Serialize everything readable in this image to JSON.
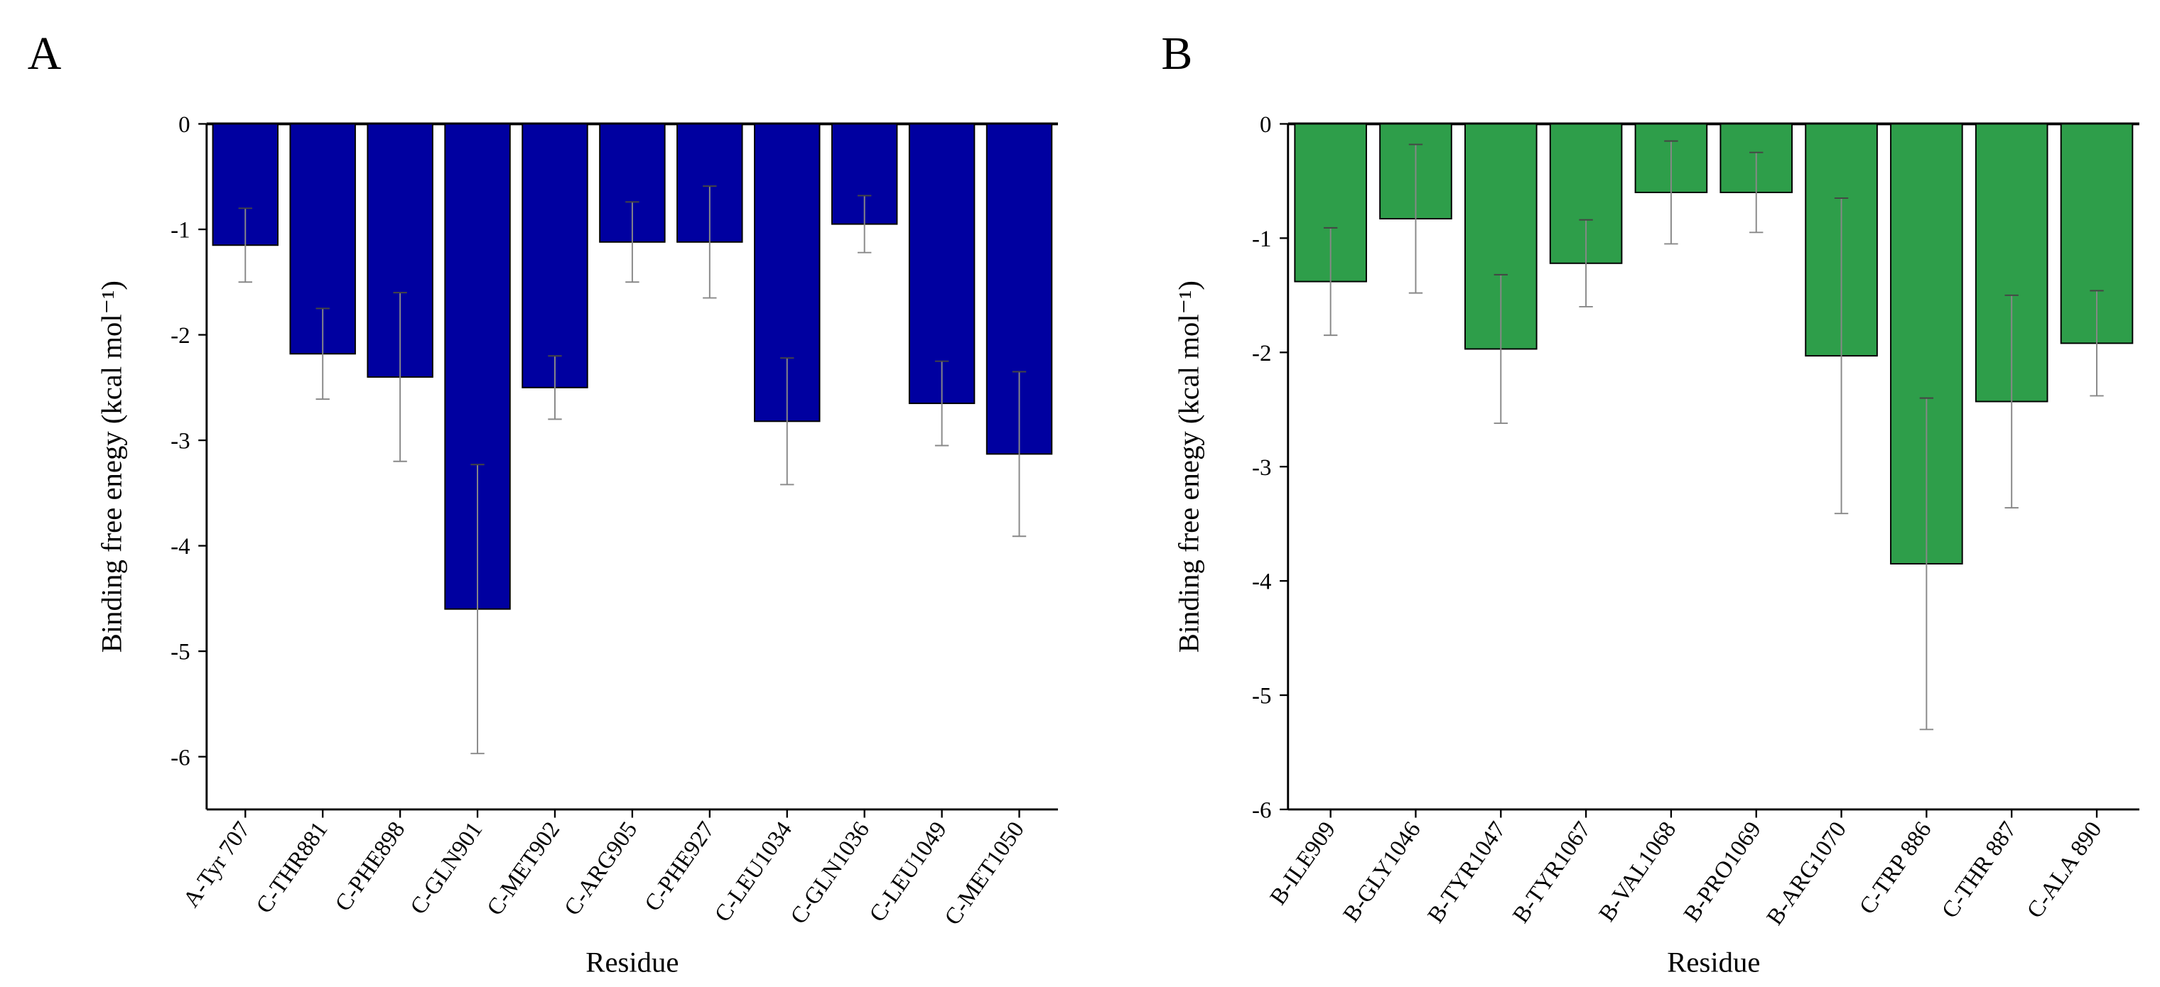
{
  "chart_data": [
    {
      "type": "bar",
      "panel_label": "A",
      "xlabel": "Residue",
      "ylabel": "Binding free enegy (kcal mol⁻¹)",
      "categories": [
        "A-Tyr 707",
        "C-THR881",
        "C-PHE898",
        "C-GLN901",
        "C-MET902",
        "C-ARG905",
        "C-PHE927",
        "C-LEU1034",
        "C-GLN1036",
        "C-LEU1049",
        "C-MET1050"
      ],
      "values": [
        -1.15,
        -2.18,
        -2.4,
        -4.6,
        -2.5,
        -1.12,
        -1.12,
        -2.82,
        -0.95,
        -2.65,
        -3.13
      ],
      "errors": [
        0.35,
        0.43,
        0.8,
        1.37,
        0.3,
        0.38,
        0.53,
        0.6,
        0.27,
        0.4,
        0.78
      ],
      "color": "#0000a0",
      "ylim": [
        -6.5,
        0
      ],
      "yticks": [
        0,
        -1,
        -2,
        -3,
        -4,
        -5,
        -6
      ]
    },
    {
      "type": "bar",
      "panel_label": "B",
      "xlabel": "Residue",
      "ylabel": "Binding free enegy (kcal mol⁻¹)",
      "categories": [
        "B-ILE909",
        "B-GLY1046",
        "B-TYR1047",
        "B-TYR1067",
        "B-VAL1068",
        "B-PRO1069",
        "B-ARG1070",
        "C-TRP 886",
        "C-THR 887",
        "C-ALA 890"
      ],
      "values": [
        -1.38,
        -0.83,
        -1.97,
        -1.22,
        -0.6,
        -0.6,
        -2.03,
        -3.85,
        -2.43,
        -1.92
      ],
      "errors": [
        0.47,
        0.65,
        0.65,
        0.38,
        0.45,
        0.35,
        1.38,
        1.45,
        0.93,
        0.46
      ],
      "color": "#2e9e4a",
      "ylim": [
        -6,
        0
      ],
      "yticks": [
        0,
        -1,
        -2,
        -3,
        -4,
        -5,
        -6
      ]
    }
  ]
}
